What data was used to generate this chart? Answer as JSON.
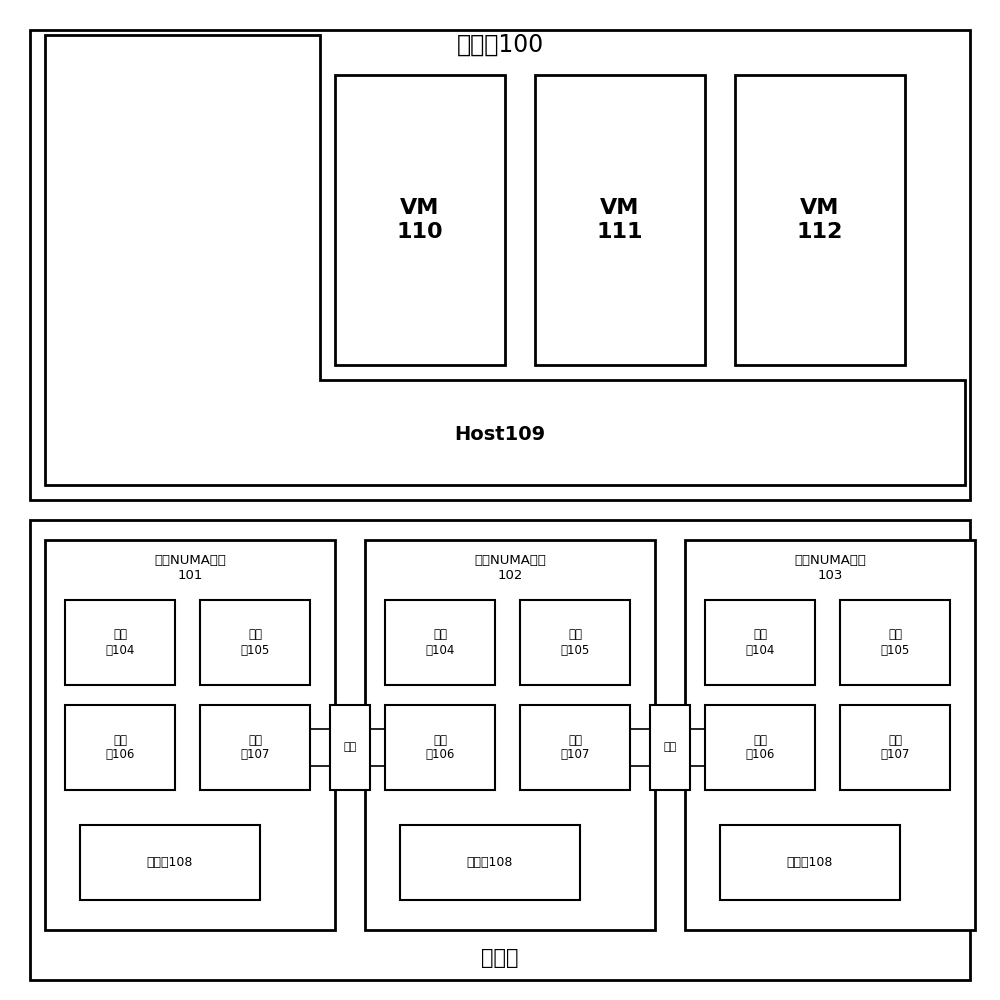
{
  "title_phys": "物理机100",
  "title_hw": "硬件层",
  "host_label": "Host109",
  "vm_labels": [
    "VM\n110",
    "VM\n111",
    "VM\n112"
  ],
  "numa_titles": [
    "物理NUMA节点\n101",
    "物理NUMA节点\n102",
    "物理NUMA节点\n103"
  ],
  "proc_labels_row1": [
    "处理\n器104",
    "处理\n器105"
  ],
  "proc_labels_row2": [
    "处理\n器106",
    "处理\n器107"
  ],
  "mem_label": "存储器108",
  "interconnect_label": "互连",
  "bg_color": "#ffffff",
  "box_fc": "#ffffff",
  "border_color": "#000000",
  "font_color": "#000000",
  "lw_outer": 2.0,
  "lw_inner": 1.5
}
